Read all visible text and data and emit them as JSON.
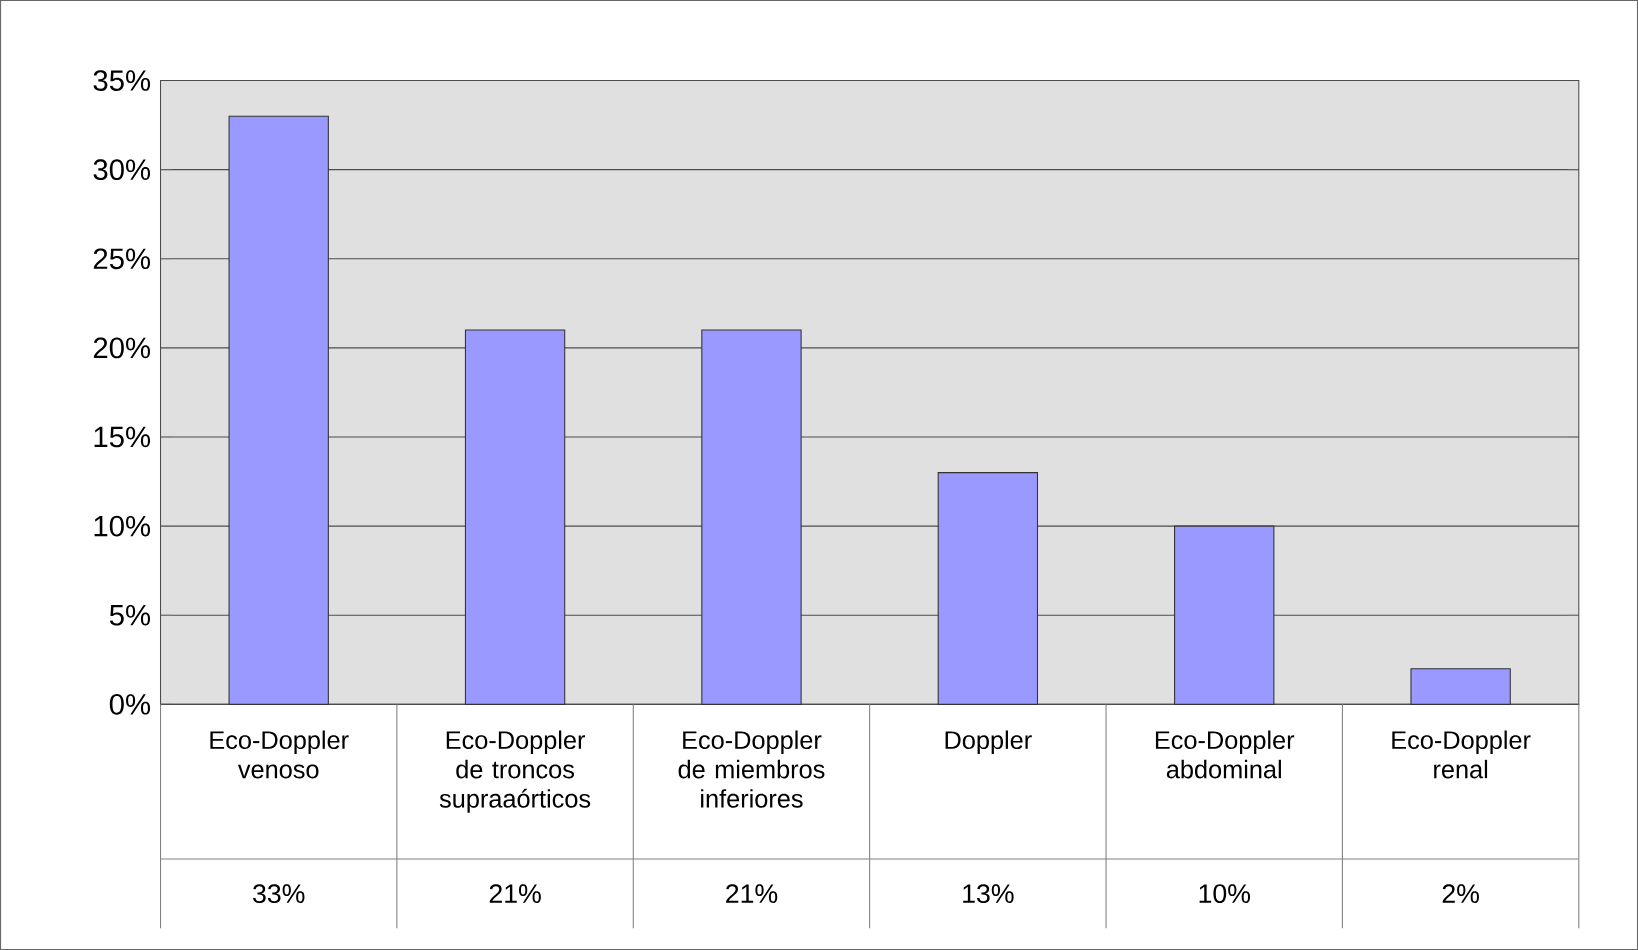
{
  "chart_data": {
    "type": "bar",
    "categories": [
      "Eco-Doppler venoso",
      "Eco-Doppler de troncos supraaórticos",
      "Eco-Doppler de miembros inferiores",
      "Doppler",
      "Eco-Doppler abdominal",
      "Eco-Doppler renal"
    ],
    "values": [
      33,
      21,
      21,
      13,
      10,
      2
    ],
    "value_labels": [
      "33%",
      "21%",
      "21%",
      "13%",
      "10%",
      "2%"
    ],
    "color": "#9999ff",
    "ylim": [
      0,
      35
    ],
    "yticks": [
      {
        "value": 0,
        "label": "0%"
      },
      {
        "value": 5,
        "label": "5%"
      },
      {
        "value": 10,
        "label": "10%"
      },
      {
        "value": 15,
        "label": "15%"
      },
      {
        "value": 20,
        "label": "20%"
      },
      {
        "value": 25,
        "label": "25%"
      },
      {
        "value": 30,
        "label": "30%"
      },
      {
        "value": 35,
        "label": "35%"
      }
    ],
    "grid": "y"
  }
}
